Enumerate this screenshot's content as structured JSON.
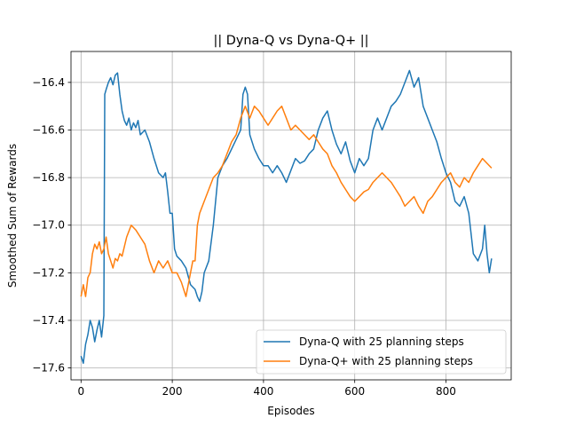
{
  "chart_data": {
    "type": "line",
    "title": "|| Dyna-Q vs Dyna-Q+ ||",
    "xlabel": "Episodes",
    "ylabel": "Smoothed Sum of Rewards",
    "xlim": [
      -22,
      943
    ],
    "ylim": [
      -17.65,
      -16.27
    ],
    "xticks": [
      0,
      200,
      400,
      600,
      800
    ],
    "yticks": [
      -17.6,
      -17.4,
      -17.2,
      -17.0,
      -16.8,
      -16.6,
      -16.4
    ],
    "grid": true,
    "legend_position": "lower-right",
    "series": [
      {
        "name": "Dyna-Q with 25 planning steps",
        "color": "#1f77b4",
        "points": [
          [
            0,
            -17.55
          ],
          [
            5,
            -17.58
          ],
          [
            10,
            -17.5
          ],
          [
            15,
            -17.46
          ],
          [
            20,
            -17.4
          ],
          [
            25,
            -17.43
          ],
          [
            30,
            -17.49
          ],
          [
            35,
            -17.44
          ],
          [
            40,
            -17.4
          ],
          [
            45,
            -17.47
          ],
          [
            50,
            -17.38
          ],
          [
            52,
            -16.45
          ],
          [
            55,
            -16.43
          ],
          [
            60,
            -16.4
          ],
          [
            65,
            -16.38
          ],
          [
            70,
            -16.41
          ],
          [
            75,
            -16.37
          ],
          [
            80,
            -16.36
          ],
          [
            85,
            -16.45
          ],
          [
            90,
            -16.52
          ],
          [
            95,
            -16.56
          ],
          [
            100,
            -16.58
          ],
          [
            105,
            -16.55
          ],
          [
            110,
            -16.6
          ],
          [
            115,
            -16.57
          ],
          [
            120,
            -16.59
          ],
          [
            125,
            -16.56
          ],
          [
            130,
            -16.62
          ],
          [
            140,
            -16.6
          ],
          [
            150,
            -16.65
          ],
          [
            160,
            -16.72
          ],
          [
            170,
            -16.78
          ],
          [
            180,
            -16.8
          ],
          [
            185,
            -16.78
          ],
          [
            190,
            -16.86
          ],
          [
            195,
            -16.95
          ],
          [
            200,
            -16.95
          ],
          [
            205,
            -17.1
          ],
          [
            210,
            -17.13
          ],
          [
            220,
            -17.15
          ],
          [
            230,
            -17.18
          ],
          [
            240,
            -17.25
          ],
          [
            250,
            -17.27
          ],
          [
            255,
            -17.3
          ],
          [
            260,
            -17.32
          ],
          [
            265,
            -17.28
          ],
          [
            270,
            -17.2
          ],
          [
            280,
            -17.15
          ],
          [
            290,
            -17.0
          ],
          [
            300,
            -16.8
          ],
          [
            310,
            -16.75
          ],
          [
            320,
            -16.72
          ],
          [
            330,
            -16.68
          ],
          [
            340,
            -16.64
          ],
          [
            350,
            -16.6
          ],
          [
            355,
            -16.45
          ],
          [
            360,
            -16.42
          ],
          [
            365,
            -16.45
          ],
          [
            370,
            -16.62
          ],
          [
            380,
            -16.68
          ],
          [
            390,
            -16.72
          ],
          [
            400,
            -16.75
          ],
          [
            410,
            -16.75
          ],
          [
            420,
            -16.78
          ],
          [
            430,
            -16.75
          ],
          [
            440,
            -16.78
          ],
          [
            450,
            -16.82
          ],
          [
            460,
            -16.77
          ],
          [
            470,
            -16.72
          ],
          [
            480,
            -16.74
          ],
          [
            490,
            -16.73
          ],
          [
            500,
            -16.7
          ],
          [
            510,
            -16.68
          ],
          [
            520,
            -16.6
          ],
          [
            530,
            -16.55
          ],
          [
            540,
            -16.52
          ],
          [
            550,
            -16.6
          ],
          [
            560,
            -16.66
          ],
          [
            570,
            -16.7
          ],
          [
            580,
            -16.65
          ],
          [
            590,
            -16.73
          ],
          [
            600,
            -16.78
          ],
          [
            610,
            -16.72
          ],
          [
            620,
            -16.75
          ],
          [
            630,
            -16.72
          ],
          [
            640,
            -16.6
          ],
          [
            650,
            -16.55
          ],
          [
            660,
            -16.6
          ],
          [
            670,
            -16.55
          ],
          [
            680,
            -16.5
          ],
          [
            690,
            -16.48
          ],
          [
            700,
            -16.45
          ],
          [
            710,
            -16.4
          ],
          [
            720,
            -16.35
          ],
          [
            730,
            -16.42
          ],
          [
            740,
            -16.38
          ],
          [
            750,
            -16.5
          ],
          [
            760,
            -16.55
          ],
          [
            770,
            -16.6
          ],
          [
            780,
            -16.65
          ],
          [
            790,
            -16.72
          ],
          [
            800,
            -16.78
          ],
          [
            810,
            -16.82
          ],
          [
            820,
            -16.9
          ],
          [
            830,
            -16.92
          ],
          [
            840,
            -16.88
          ],
          [
            850,
            -16.95
          ],
          [
            860,
            -17.12
          ],
          [
            870,
            -17.15
          ],
          [
            880,
            -17.1
          ],
          [
            885,
            -17.0
          ],
          [
            890,
            -17.12
          ],
          [
            895,
            -17.2
          ],
          [
            900,
            -17.14
          ]
        ]
      },
      {
        "name": "Dyna-Q+ with 25 planning steps",
        "color": "#ff7f0e",
        "points": [
          [
            0,
            -17.3
          ],
          [
            5,
            -17.25
          ],
          [
            10,
            -17.3
          ],
          [
            15,
            -17.22
          ],
          [
            20,
            -17.2
          ],
          [
            25,
            -17.12
          ],
          [
            30,
            -17.08
          ],
          [
            35,
            -17.1
          ],
          [
            40,
            -17.07
          ],
          [
            45,
            -17.12
          ],
          [
            50,
            -17.1
          ],
          [
            55,
            -17.05
          ],
          [
            60,
            -17.12
          ],
          [
            65,
            -17.15
          ],
          [
            70,
            -17.18
          ],
          [
            75,
            -17.14
          ],
          [
            80,
            -17.15
          ],
          [
            85,
            -17.12
          ],
          [
            90,
            -17.13
          ],
          [
            100,
            -17.05
          ],
          [
            110,
            -17.0
          ],
          [
            120,
            -17.02
          ],
          [
            130,
            -17.05
          ],
          [
            140,
            -17.08
          ],
          [
            150,
            -17.15
          ],
          [
            160,
            -17.2
          ],
          [
            170,
            -17.15
          ],
          [
            180,
            -17.18
          ],
          [
            190,
            -17.15
          ],
          [
            200,
            -17.2
          ],
          [
            210,
            -17.2
          ],
          [
            220,
            -17.24
          ],
          [
            230,
            -17.3
          ],
          [
            240,
            -17.2
          ],
          [
            245,
            -17.15
          ],
          [
            250,
            -17.15
          ],
          [
            255,
            -17.0
          ],
          [
            260,
            -16.95
          ],
          [
            270,
            -16.9
          ],
          [
            280,
            -16.85
          ],
          [
            290,
            -16.8
          ],
          [
            300,
            -16.78
          ],
          [
            310,
            -16.75
          ],
          [
            320,
            -16.7
          ],
          [
            330,
            -16.65
          ],
          [
            340,
            -16.62
          ],
          [
            350,
            -16.55
          ],
          [
            360,
            -16.5
          ],
          [
            370,
            -16.55
          ],
          [
            380,
            -16.5
          ],
          [
            390,
            -16.52
          ],
          [
            400,
            -16.55
          ],
          [
            410,
            -16.58
          ],
          [
            420,
            -16.55
          ],
          [
            430,
            -16.52
          ],
          [
            440,
            -16.5
          ],
          [
            450,
            -16.55
          ],
          [
            460,
            -16.6
          ],
          [
            470,
            -16.58
          ],
          [
            480,
            -16.6
          ],
          [
            490,
            -16.62
          ],
          [
            500,
            -16.64
          ],
          [
            510,
            -16.62
          ],
          [
            520,
            -16.65
          ],
          [
            530,
            -16.68
          ],
          [
            540,
            -16.7
          ],
          [
            550,
            -16.75
          ],
          [
            560,
            -16.78
          ],
          [
            570,
            -16.82
          ],
          [
            580,
            -16.85
          ],
          [
            590,
            -16.88
          ],
          [
            600,
            -16.9
          ],
          [
            610,
            -16.88
          ],
          [
            620,
            -16.86
          ],
          [
            630,
            -16.85
          ],
          [
            640,
            -16.82
          ],
          [
            650,
            -16.8
          ],
          [
            660,
            -16.78
          ],
          [
            670,
            -16.8
          ],
          [
            680,
            -16.82
          ],
          [
            690,
            -16.85
          ],
          [
            700,
            -16.88
          ],
          [
            710,
            -16.92
          ],
          [
            720,
            -16.9
          ],
          [
            730,
            -16.88
          ],
          [
            740,
            -16.92
          ],
          [
            750,
            -16.95
          ],
          [
            760,
            -16.9
          ],
          [
            770,
            -16.88
          ],
          [
            780,
            -16.85
          ],
          [
            790,
            -16.82
          ],
          [
            800,
            -16.8
          ],
          [
            810,
            -16.78
          ],
          [
            820,
            -16.82
          ],
          [
            830,
            -16.84
          ],
          [
            840,
            -16.8
          ],
          [
            850,
            -16.82
          ],
          [
            860,
            -16.78
          ],
          [
            870,
            -16.75
          ],
          [
            880,
            -16.72
          ],
          [
            890,
            -16.74
          ],
          [
            900,
            -16.76
          ]
        ]
      }
    ]
  }
}
